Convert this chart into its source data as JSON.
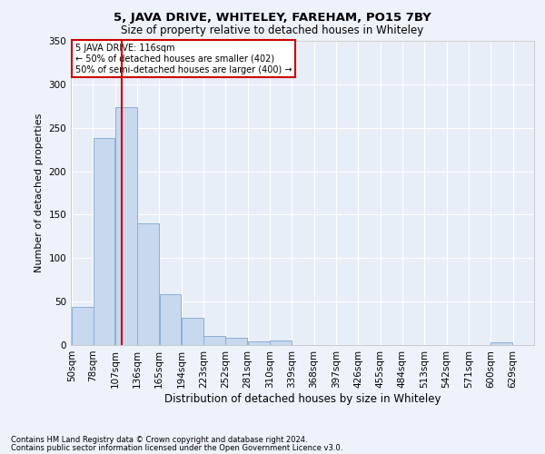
{
  "title": "5, JAVA DRIVE, WHITELEY, FAREHAM, PO15 7BY",
  "subtitle": "Size of property relative to detached houses in Whiteley",
  "xlabel": "Distribution of detached houses by size in Whiteley",
  "ylabel": "Number of detached properties",
  "bar_color": "#c8d8ef",
  "bar_edge_color": "#8aafd4",
  "background_color": "#e8eef8",
  "grid_color": "#ffffff",
  "vline_x": 116,
  "vline_color": "#cc0000",
  "annotation_title": "5 JAVA DRIVE: 116sqm",
  "annotation_line1": "← 50% of detached houses are smaller (402)",
  "annotation_line2": "50% of semi-detached houses are larger (400) →",
  "annotation_box_color": "#ffffff",
  "annotation_box_edge": "#cc0000",
  "bins": [
    50,
    78,
    107,
    136,
    165,
    194,
    223,
    252,
    281,
    310,
    339,
    368,
    397,
    426,
    455,
    484,
    513,
    542,
    571,
    600,
    629
  ],
  "values": [
    44,
    238,
    274,
    140,
    59,
    31,
    10,
    8,
    4,
    5,
    0,
    0,
    0,
    0,
    0,
    0,
    0,
    0,
    0,
    3
  ],
  "ylim": [
    0,
    350
  ],
  "yticks": [
    0,
    50,
    100,
    150,
    200,
    250,
    300,
    350
  ],
  "footnote1": "Contains HM Land Registry data © Crown copyright and database right 2024.",
  "footnote2": "Contains public sector information licensed under the Open Government Licence v3.0.",
  "fig_width": 6.0,
  "fig_height": 5.0,
  "dpi": 100
}
